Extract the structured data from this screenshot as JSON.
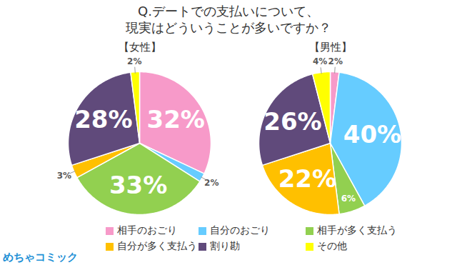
{
  "title": "Q.デートでの支払いについて、\n現実はどういうことが多いですか？",
  "logo": "めちゃコミック",
  "chart_data": [
    {
      "type": "pie",
      "title": "【女性】",
      "categories": [
        "相手のおごり",
        "自分のおごり",
        "相手が多く支払う",
        "自分が多く支払う",
        "割り勘",
        "その他"
      ],
      "values": [
        32,
        2,
        33,
        3,
        28,
        2
      ],
      "value_labels": [
        "32%",
        "2%",
        "33%",
        "3%",
        "28%",
        "2%"
      ],
      "colors": [
        "#f79ac9",
        "#66ccff",
        "#92d050",
        "#ffc000",
        "#604a7b",
        "#ffff00"
      ],
      "data_labels": true,
      "legend": "bottom"
    },
    {
      "type": "pie",
      "title": "【男性】",
      "categories": [
        "相手のおごり",
        "自分のおごり",
        "相手が多く支払う",
        "自分が多く支払う",
        "割り勘",
        "その他"
      ],
      "values": [
        2,
        40,
        6,
        22,
        26,
        4
      ],
      "value_labels": [
        "2%",
        "40%",
        "6%",
        "22%",
        "26%",
        "4%"
      ],
      "colors": [
        "#f79ac9",
        "#66ccff",
        "#92d050",
        "#ffc000",
        "#604a7b",
        "#ffff00"
      ],
      "data_labels": true,
      "legend": "bottom"
    }
  ]
}
